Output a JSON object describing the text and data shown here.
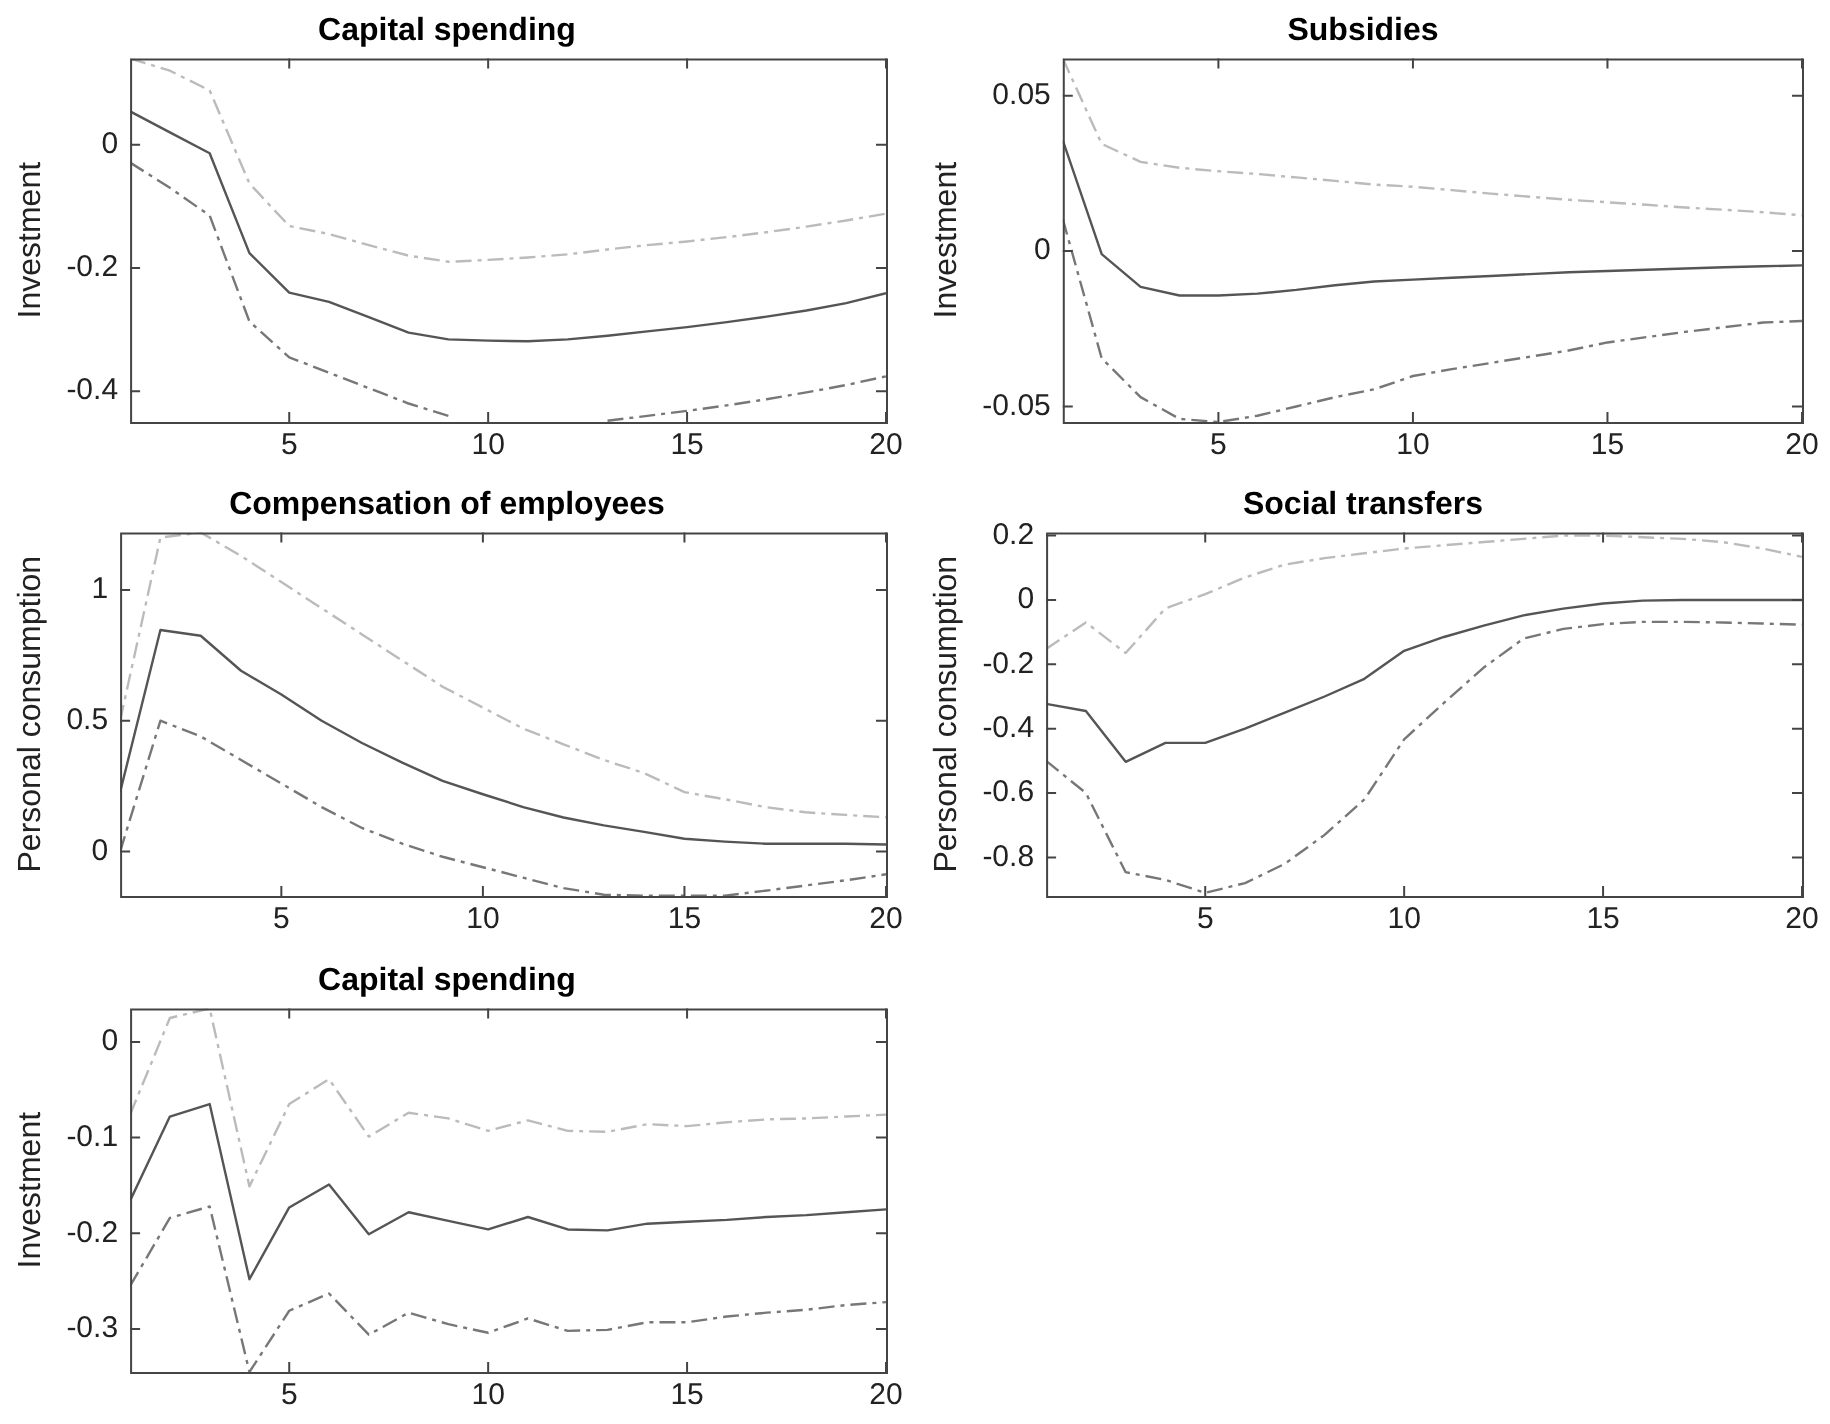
{
  "chart_data": [
    {
      "type": "line",
      "title": "Capital spending",
      "ylabel": "Investment",
      "x": [
        1,
        2,
        3,
        4,
        5,
        6,
        7,
        8,
        9,
        10,
        11,
        12,
        13,
        14,
        15,
        16,
        17,
        18,
        19,
        20
      ],
      "xlim": [
        1,
        20
      ],
      "xticks": [
        5,
        10,
        15,
        20
      ],
      "ylim": [
        -0.45,
        0.14
      ],
      "yticks": [
        -0.4,
        -0.2,
        0
      ],
      "grid": false,
      "legend": false,
      "marker": "none",
      "series": [
        {
          "color": "#555555",
          "line_style": "solid",
          "values": [
            0.054,
            0.02,
            -0.014,
            -0.176,
            -0.24,
            -0.255,
            -0.28,
            -0.305,
            -0.316,
            -0.318,
            -0.319,
            -0.316,
            -0.31,
            -0.303,
            -0.296,
            -0.288,
            -0.279,
            -0.269,
            -0.257,
            -0.241
          ]
        },
        {
          "color": "#bbbbbb",
          "line_style": "dashed",
          "values": [
            0.14,
            0.12,
            0.088,
            -0.063,
            -0.132,
            -0.145,
            -0.163,
            -0.18,
            -0.19,
            -0.187,
            -0.183,
            -0.178,
            -0.17,
            -0.163,
            -0.157,
            -0.15,
            -0.142,
            -0.133,
            -0.123,
            -0.112
          ]
        },
        {
          "color": "#777777",
          "line_style": "dashed",
          "values": [
            -0.029,
            -0.07,
            -0.115,
            -0.287,
            -0.345,
            -0.37,
            -0.395,
            -0.42,
            -0.44,
            null,
            null,
            null,
            -0.448,
            -0.44,
            -0.432,
            -0.423,
            -0.413,
            -0.402,
            -0.39,
            -0.376
          ]
        }
      ]
    },
    {
      "type": "line",
      "title": "Subsidies",
      "ylabel": "Investment",
      "x": [
        1,
        2,
        3,
        4,
        5,
        6,
        7,
        8,
        9,
        10,
        11,
        12,
        13,
        14,
        15,
        16,
        17,
        18,
        19,
        20
      ],
      "xlim": [
        1,
        20
      ],
      "xticks": [
        5,
        10,
        15,
        20
      ],
      "ylim": [
        -0.055,
        0.062
      ],
      "yticks": [
        -0.05,
        0,
        0.05
      ],
      "grid": false,
      "legend": false,
      "marker": "none",
      "series": [
        {
          "color": "#555555",
          "line_style": "solid",
          "values": [
            0.0356,
            -0.001,
            -0.0115,
            -0.0143,
            -0.0143,
            -0.0137,
            -0.0125,
            -0.011,
            -0.0098,
            -0.0092,
            -0.0086,
            -0.008,
            -0.0074,
            -0.0068,
            -0.0064,
            -0.006,
            -0.0056,
            -0.0052,
            -0.0049,
            -0.0046
          ]
        },
        {
          "color": "#bbbbbb",
          "line_style": "dashed",
          "values": [
            0.062,
            0.0345,
            0.0287,
            0.0268,
            0.0257,
            0.0248,
            0.0237,
            0.0226,
            0.0214,
            0.0207,
            0.0196,
            0.0185,
            0.0175,
            0.0165,
            0.0157,
            0.0149,
            0.014,
            0.0133,
            0.0125,
            0.0115
          ]
        },
        {
          "color": "#777777",
          "line_style": "dashed",
          "values": [
            0.0103,
            -0.0345,
            -0.047,
            -0.054,
            -0.055,
            -0.053,
            -0.05,
            -0.047,
            -0.0445,
            -0.0402,
            -0.038,
            -0.036,
            -0.034,
            -0.032,
            -0.0294,
            -0.0277,
            -0.026,
            -0.0245,
            -0.023,
            -0.0225
          ]
        }
      ]
    },
    {
      "type": "line",
      "title": "Compensation of employees",
      "ylabel": "Personal consumption",
      "x": [
        1,
        2,
        3,
        4,
        5,
        6,
        7,
        8,
        9,
        10,
        11,
        12,
        13,
        14,
        15,
        16,
        17,
        18,
        19,
        20
      ],
      "xlim": [
        1,
        20
      ],
      "xticks": [
        5,
        10,
        15,
        20
      ],
      "ylim": [
        -0.17,
        1.22
      ],
      "yticks": [
        0,
        0.5,
        1
      ],
      "grid": false,
      "legend": false,
      "marker": "none",
      "series": [
        {
          "color": "#555555",
          "line_style": "solid",
          "values": [
            0.227,
            0.847,
            0.825,
            0.691,
            0.6,
            0.5,
            0.415,
            0.34,
            0.27,
            0.219,
            0.17,
            0.13,
            0.1,
            0.075,
            0.049,
            0.038,
            0.03,
            0.03,
            0.03,
            0.027
          ]
        },
        {
          "color": "#bbbbbb",
          "line_style": "dashed",
          "values": [
            0.5,
            1.2,
            1.22,
            1.13,
            1.03,
            0.93,
            0.83,
            0.73,
            0.63,
            0.55,
            0.47,
            0.41,
            0.35,
            0.3,
            0.227,
            0.2,
            0.17,
            0.15,
            0.14,
            0.131
          ]
        },
        {
          "color": "#777777",
          "line_style": "dashed",
          "values": [
            0,
            0.5,
            0.44,
            0.35,
            0.26,
            0.17,
            0.09,
            0.03,
            -0.02,
            -0.06,
            -0.1,
            -0.14,
            -0.165,
            -0.169,
            -0.169,
            -0.169,
            -0.15,
            -0.13,
            -0.11,
            -0.087
          ]
        }
      ]
    },
    {
      "type": "line",
      "title": "Social transfers",
      "ylabel": "Personal consumption",
      "x": [
        1,
        2,
        3,
        4,
        5,
        6,
        7,
        8,
        9,
        10,
        11,
        12,
        13,
        14,
        15,
        16,
        17,
        18,
        19,
        20
      ],
      "xlim": [
        1,
        20
      ],
      "xticks": [
        5,
        10,
        15,
        20
      ],
      "ylim": [
        -0.92,
        0.21
      ],
      "yticks": [
        -0.8,
        -0.6,
        -0.4,
        -0.2,
        0,
        0.2
      ],
      "grid": false,
      "legend": false,
      "marker": "none",
      "series": [
        {
          "color": "#555555",
          "line_style": "solid",
          "values": [
            -0.323,
            -0.345,
            -0.503,
            -0.444,
            -0.444,
            -0.4,
            -0.35,
            -0.3,
            -0.245,
            -0.158,
            -0.115,
            -0.08,
            -0.048,
            -0.027,
            -0.011,
            -0.002,
            0,
            0,
            0,
            0
          ]
        },
        {
          "color": "#bbbbbb",
          "line_style": "dashed",
          "values": [
            -0.152,
            -0.07,
            -0.165,
            -0.026,
            0.018,
            0.07,
            0.11,
            0.13,
            0.145,
            0.16,
            0.17,
            0.18,
            0.19,
            0.2,
            0.2,
            0.195,
            0.19,
            0.18,
            0.16,
            0.134
          ]
        },
        {
          "color": "#777777",
          "line_style": "dashed",
          "values": [
            -0.5,
            -0.6,
            -0.846,
            -0.87,
            -0.91,
            -0.88,
            -0.82,
            -0.73,
            -0.62,
            -0.433,
            -0.32,
            -0.21,
            -0.12,
            -0.09,
            -0.075,
            -0.068,
            -0.068,
            -0.07,
            -0.073,
            -0.077
          ]
        }
      ]
    },
    {
      "type": "line",
      "title": "Capital spending",
      "ylabel": "Investment",
      "x": [
        1,
        2,
        3,
        4,
        5,
        6,
        7,
        8,
        9,
        10,
        11,
        12,
        13,
        14,
        15,
        16,
        17,
        18,
        19,
        20
      ],
      "xlim": [
        1,
        20
      ],
      "xticks": [
        5,
        10,
        15,
        20
      ],
      "ylim": [
        -0.345,
        0.035
      ],
      "yticks": [
        -0.3,
        -0.2,
        -0.1,
        0
      ],
      "grid": false,
      "legend": false,
      "marker": "none",
      "series": [
        {
          "color": "#555555",
          "line_style": "solid",
          "values": [
            -0.166,
            -0.078,
            -0.065,
            -0.248,
            -0.173,
            -0.149,
            -0.201,
            -0.178,
            -0.187,
            -0.196,
            -0.183,
            -0.196,
            -0.197,
            -0.19,
            -0.188,
            -0.186,
            -0.183,
            -0.181,
            -0.178,
            -0.175
          ]
        },
        {
          "color": "#bbbbbb",
          "line_style": "dashed",
          "values": [
            -0.076,
            0.025,
            0.035,
            -0.151,
            -0.065,
            -0.039,
            -0.099,
            -0.074,
            -0.08,
            -0.093,
            -0.082,
            -0.093,
            -0.094,
            -0.086,
            -0.088,
            -0.084,
            -0.081,
            -0.08,
            -0.078,
            -0.076
          ]
        },
        {
          "color": "#777777",
          "line_style": "dashed",
          "values": [
            -0.255,
            -0.184,
            -0.172,
            -0.345,
            -0.281,
            -0.263,
            -0.306,
            -0.283,
            -0.295,
            -0.304,
            -0.289,
            -0.302,
            -0.301,
            -0.293,
            -0.293,
            -0.287,
            -0.283,
            -0.28,
            -0.275,
            -0.272
          ]
        }
      ]
    }
  ]
}
